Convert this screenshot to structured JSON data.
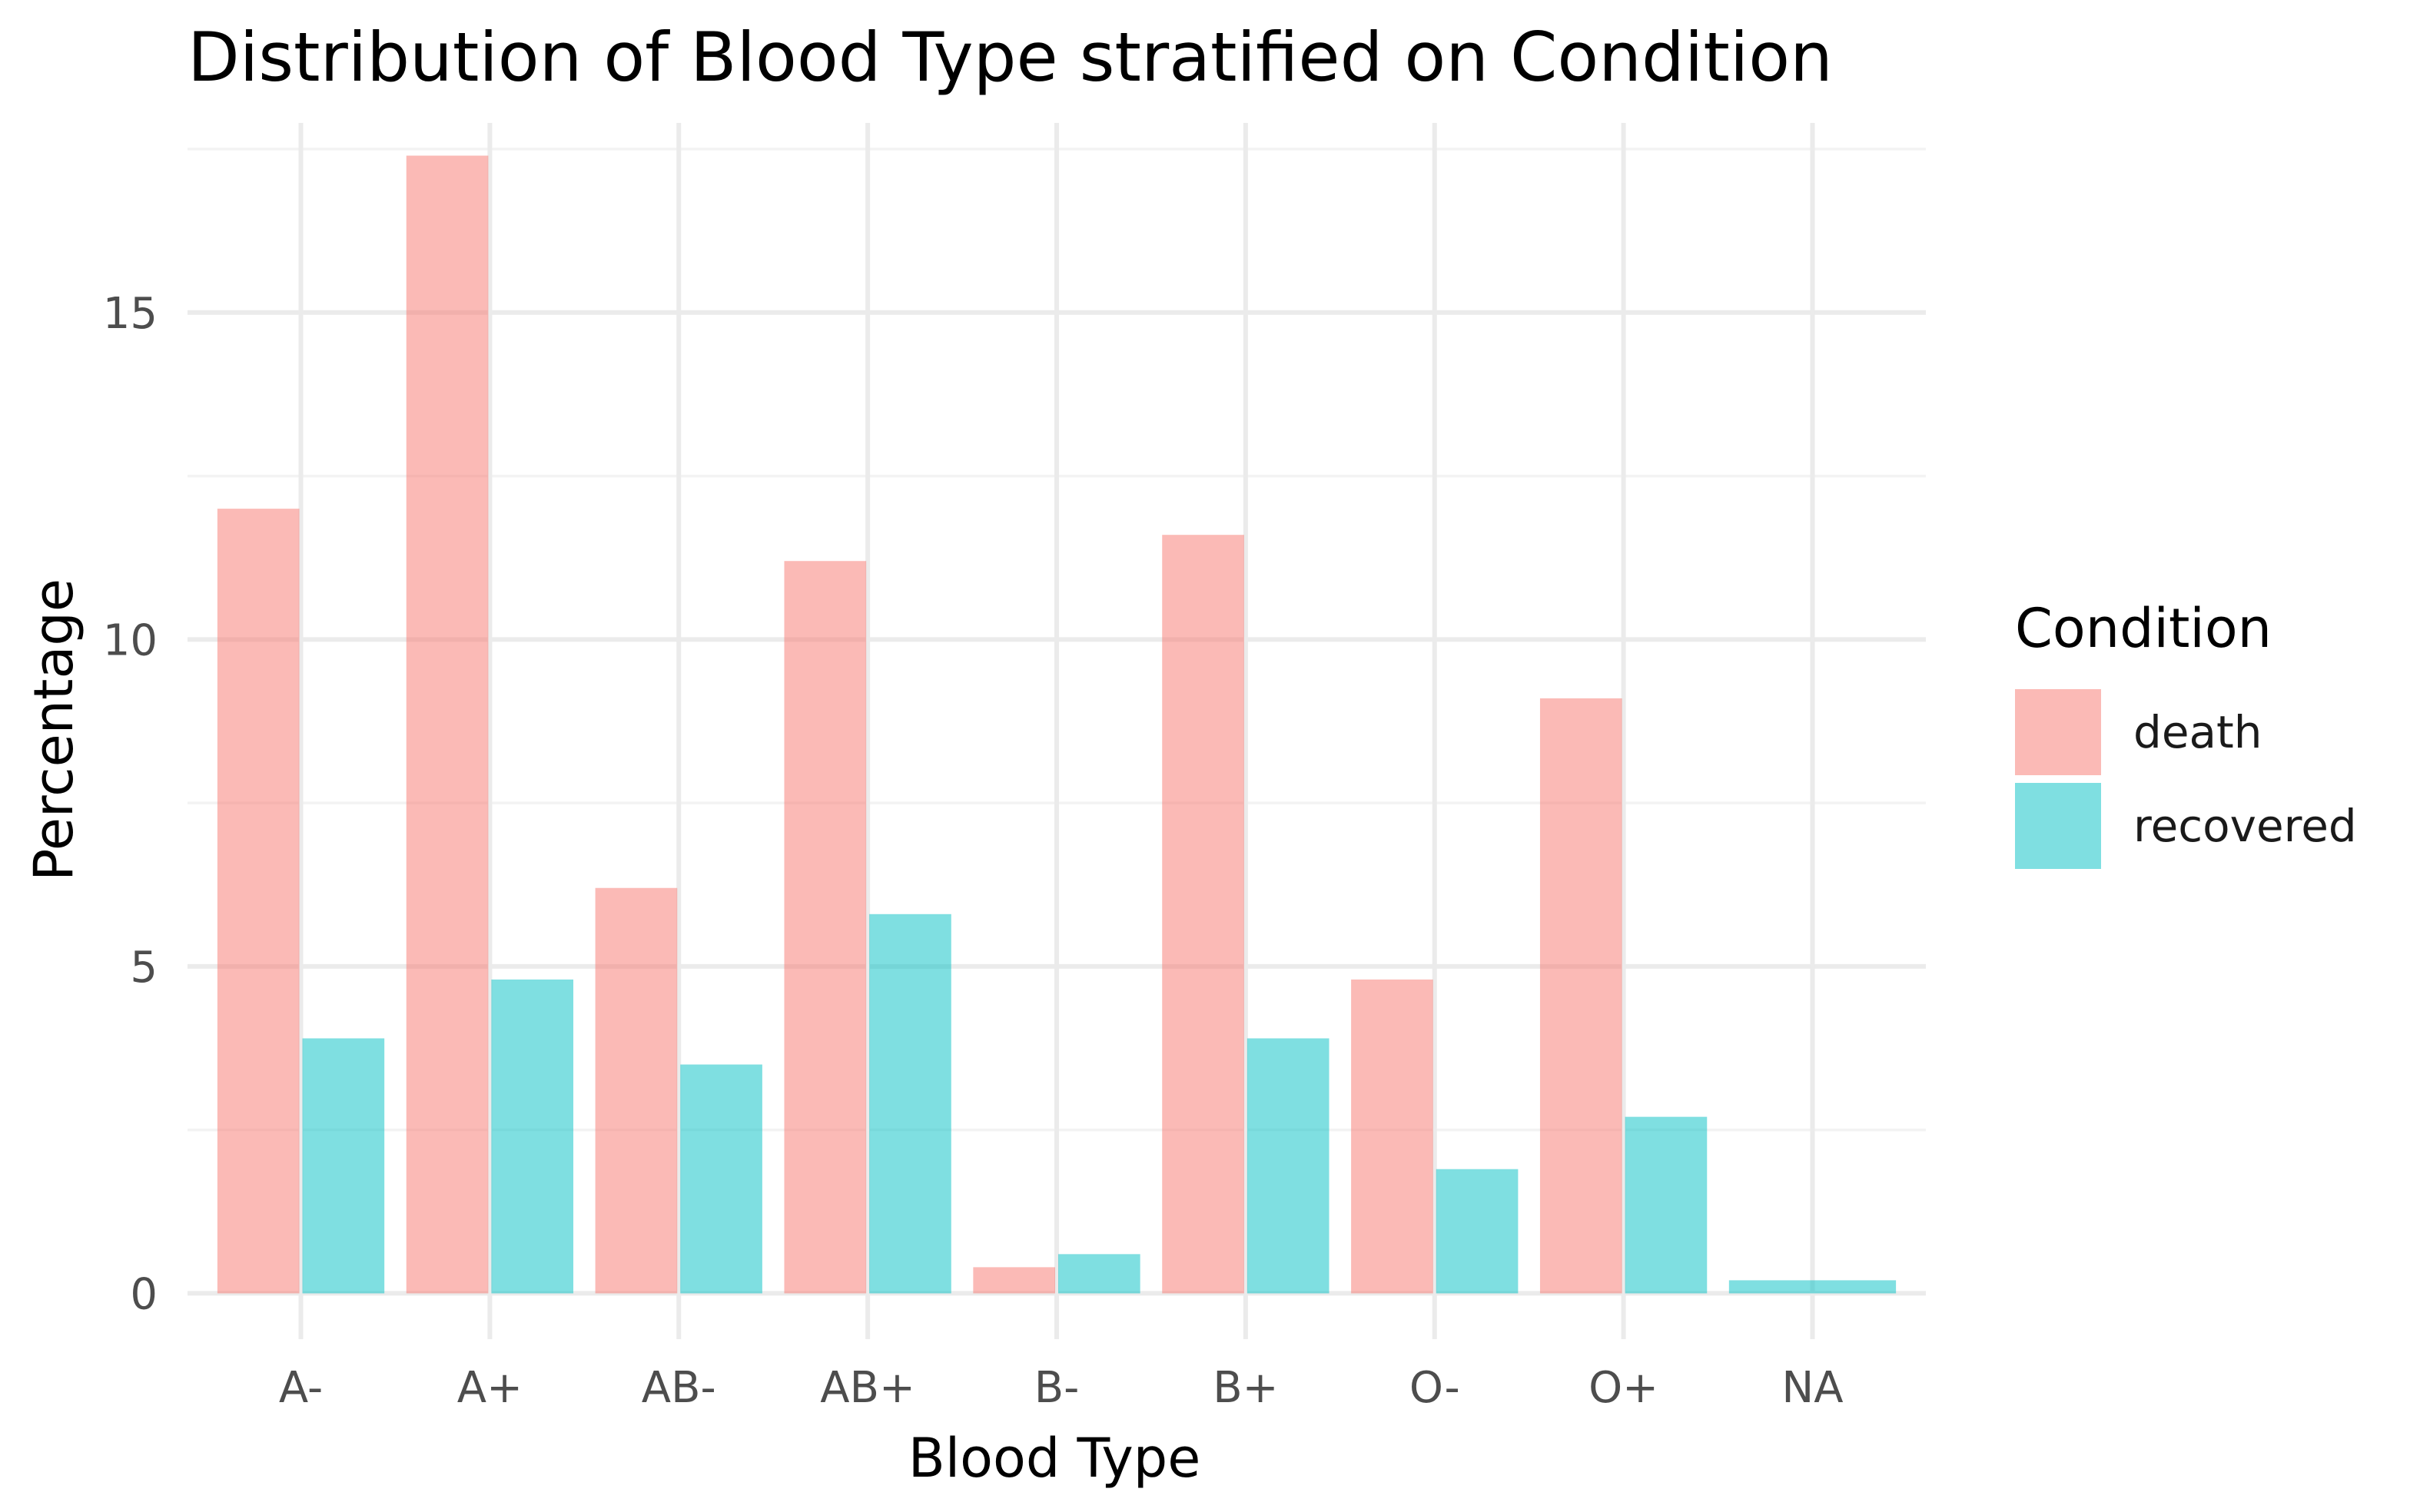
{
  "chart_data": {
    "type": "bar",
    "title": "Distribution of Blood Type stratified on Condition",
    "xlabel": "Blood Type",
    "ylabel": "Percentage",
    "categories": [
      "A-",
      "A+",
      "AB-",
      "AB+",
      "B-",
      "B+",
      "O-",
      "O+",
      "NA"
    ],
    "series": [
      {
        "name": "death",
        "color": "#F8766D",
        "values": [
          12.0,
          17.4,
          6.2,
          11.2,
          0.4,
          11.6,
          4.8,
          9.1,
          null
        ]
      },
      {
        "name": "recovered",
        "color": "#00BFC4",
        "values": [
          3.9,
          4.8,
          3.5,
          5.8,
          0.6,
          3.9,
          1.9,
          2.7,
          0.2
        ]
      }
    ],
    "ylim": [
      -0.7,
      17.9
    ],
    "yticks": [
      0,
      5,
      10,
      15
    ],
    "ytick_labels": [
      "0",
      "5",
      "10",
      "15"
    ],
    "grid": true,
    "legend": {
      "title": "Condition",
      "placement": "right"
    }
  }
}
